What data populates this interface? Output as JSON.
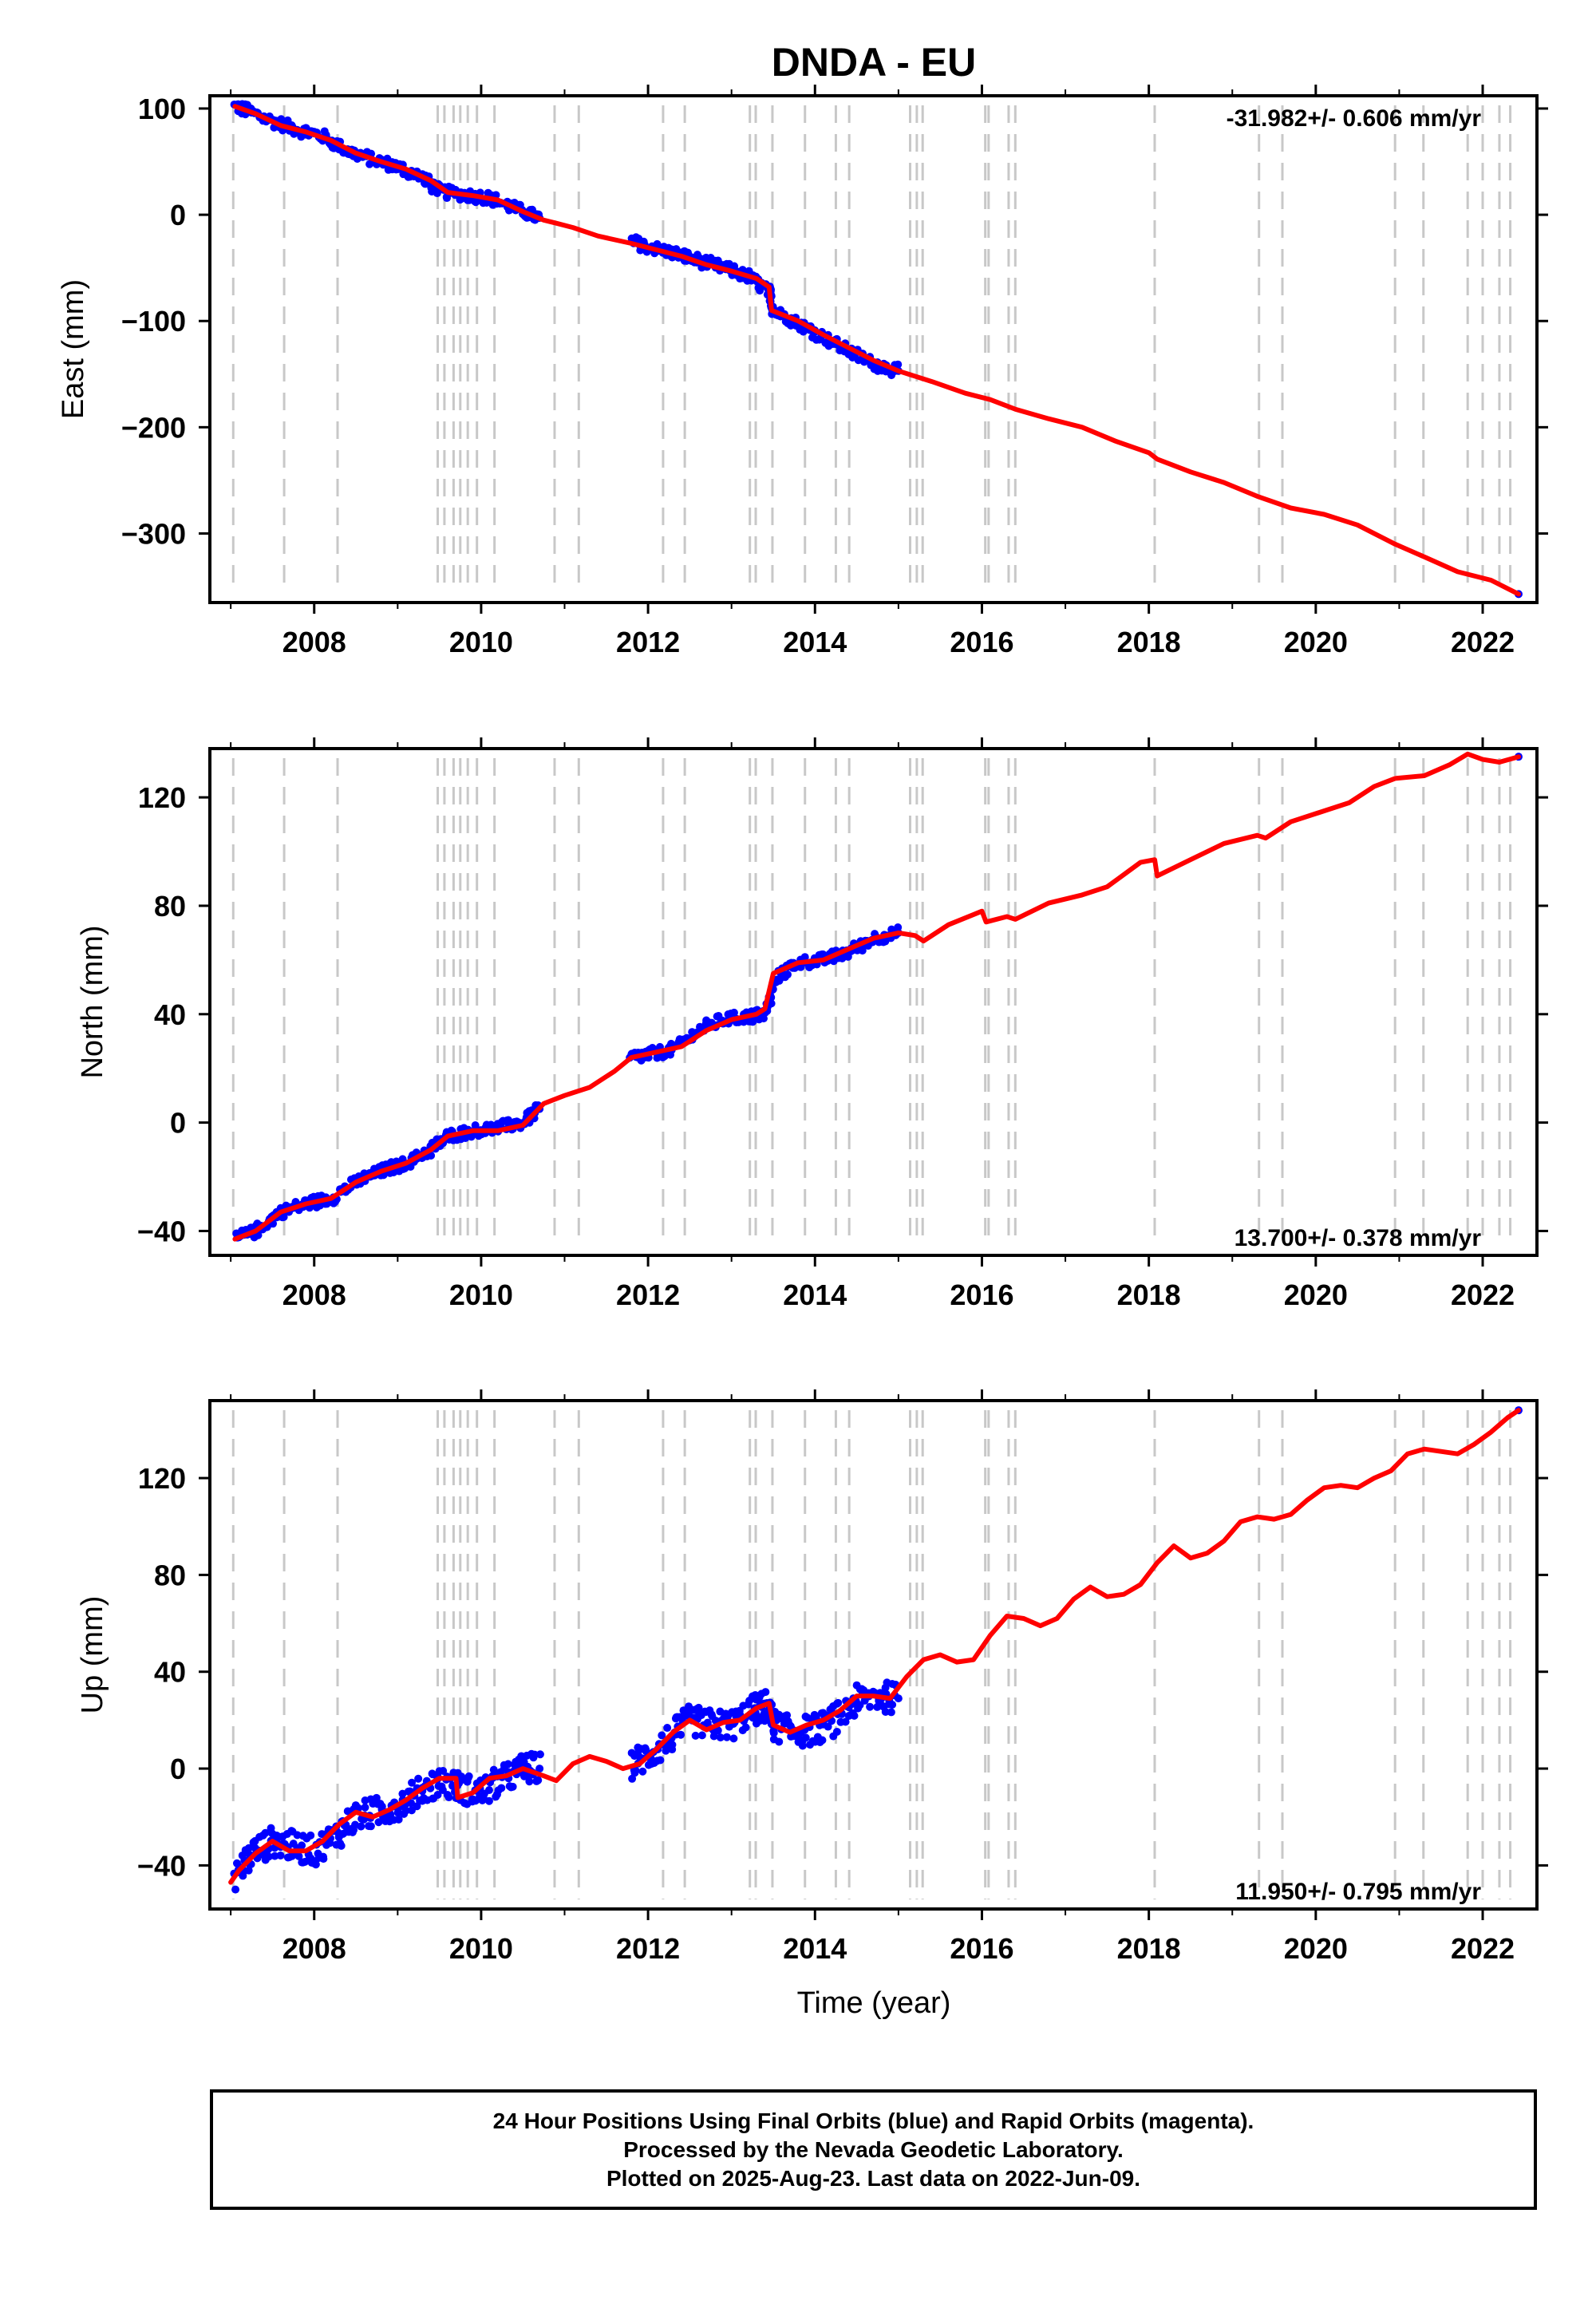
{
  "title": "DNDA - EU",
  "xlabel": "Time (year)",
  "x_ticks": [
    2008,
    2010,
    2012,
    2014,
    2016,
    2018,
    2020,
    2022
  ],
  "xlim": [
    2006.75,
    2022.65
  ],
  "colors": {
    "final": "#0000ff",
    "rapid": "#ff00ff",
    "model": "#ff0000",
    "events": "#c8c8c8"
  },
  "event_lines": [
    2007.03,
    2007.64,
    2008.28,
    2009.48,
    2009.56,
    2009.67,
    2009.75,
    2009.84,
    2009.95,
    2010.16,
    2010.88,
    2011.17,
    2012.18,
    2012.44,
    2013.22,
    2013.29,
    2013.49,
    2013.88,
    2014.25,
    2014.41,
    2015.14,
    2015.22,
    2015.29,
    2016.04,
    2016.08,
    2016.32,
    2016.4,
    2018.07,
    2019.32,
    2019.6,
    2020.95,
    2021.29,
    2021.82,
    2022.0,
    2022.2,
    2022.33
  ],
  "chart_data": [
    {
      "type": "scatter",
      "ylabel": "East (mm)",
      "rate_label": "-31.982+/- 0.606 mm/yr",
      "ylim": [
        -365,
        112
      ],
      "y_ticks": [
        100,
        0,
        -100,
        -200,
        -300
      ],
      "y_tick_labels": [
        "100",
        "0",
        "−100",
        "−200",
        "−300"
      ],
      "series": [
        {
          "name": "Final Orbits",
          "color": "#0000ff",
          "segments": [
            {
              "x": [
                2007.05,
                2007.2,
                2007.5,
                2007.8,
                2008.1,
                2008.4,
                2008.7,
                2009.0,
                2009.3,
                2009.5,
                2009.8,
                2010.1,
                2010.4,
                2010.7
              ],
              "y": [
                102,
                98,
                88,
                80,
                74,
                60,
                52,
                45,
                35,
                22,
                19,
                16,
                6,
                -3
              ]
            },
            {
              "x": [
                2011.8,
                2012.0,
                2012.3,
                2012.6,
                2012.9,
                2013.2,
                2013.45,
                2013.5,
                2013.8,
                2014.1,
                2014.4,
                2014.7,
                2015.0
              ],
              "y": [
                -25,
                -30,
                -36,
                -43,
                -50,
                -58,
                -72,
                -90,
                -102,
                -115,
                -128,
                -140,
                -147
              ]
            },
            {
              "x": [
                2022.43
              ],
              "y": [
                -357
              ]
            }
          ]
        },
        {
          "name": "Model",
          "color": "#ff0000",
          "x": [
            2007.05,
            2007.3,
            2007.6,
            2007.9,
            2008.2,
            2008.5,
            2008.8,
            2009.1,
            2009.4,
            2009.6,
            2009.9,
            2010.2,
            2010.5,
            2010.75,
            2010.9,
            2011.1,
            2011.4,
            2011.8,
            2012.1,
            2012.4,
            2012.7,
            2013.0,
            2013.3,
            2013.45,
            2013.48,
            2013.8,
            2014.1,
            2014.4,
            2014.7,
            2015.0,
            2015.4,
            2015.8,
            2016.1,
            2016.4,
            2016.8,
            2017.2,
            2017.6,
            2018.0,
            2018.1,
            2018.5,
            2018.9,
            2019.3,
            2019.7,
            2020.1,
            2020.5,
            2020.95,
            2021.3,
            2021.7,
            2022.1,
            2022.43
          ],
          "y": [
            102,
            95,
            84,
            78,
            70,
            58,
            50,
            43,
            32,
            21,
            18,
            14,
            3,
            -5,
            -8,
            -12,
            -20,
            -27,
            -33,
            -39,
            -47,
            -53,
            -60,
            -68,
            -90,
            -100,
            -113,
            -125,
            -137,
            -147,
            -157,
            -168,
            -174,
            -183,
            -192,
            -200,
            -213,
            -224,
            -230,
            -242,
            -252,
            -265,
            -276,
            -282,
            -292,
            -310,
            -322,
            -336,
            -344,
            -357
          ]
        }
      ]
    },
    {
      "type": "scatter",
      "ylabel": "North (mm)",
      "rate_label": "13.700+/- 0.378 mm/yr",
      "ylim": [
        -49,
        138
      ],
      "y_ticks": [
        120,
        80,
        40,
        0,
        -40
      ],
      "y_tick_labels": [
        "120",
        "80",
        "40",
        "0",
        "−40"
      ],
      "series": [
        {
          "name": "Final Orbits",
          "color": "#0000ff",
          "segments": [
            {
              "x": [
                2007.05,
                2007.3,
                2007.6,
                2007.9,
                2008.2,
                2008.5,
                2008.8,
                2009.1,
                2009.4,
                2009.6,
                2009.9,
                2010.2,
                2010.5,
                2010.7
              ],
              "y": [
                -43,
                -40,
                -33,
                -30,
                -28,
                -22,
                -18,
                -15,
                -10,
                -5,
                -3,
                -2,
                0,
                5
              ]
            },
            {
              "x": [
                2011.8,
                2012.0,
                2012.3,
                2012.6,
                2012.9,
                2013.2,
                2013.4,
                2013.55,
                2013.8,
                2014.1,
                2014.4,
                2014.7,
                2015.0
              ],
              "y": [
                24,
                25,
                27,
                34,
                38,
                39,
                40,
                54,
                59,
                60,
                63,
                68,
                70
              ]
            },
            {
              "x": [
                2022.43
              ],
              "y": [
                135
              ]
            }
          ]
        },
        {
          "name": "Model",
          "color": "#ff0000",
          "x": [
            2007.05,
            2007.3,
            2007.6,
            2007.9,
            2008.2,
            2008.5,
            2008.8,
            2009.1,
            2009.4,
            2009.6,
            2009.9,
            2010.2,
            2010.5,
            2010.75,
            2011.0,
            2011.3,
            2011.6,
            2011.8,
            2012.1,
            2012.4,
            2012.7,
            2013.0,
            2013.3,
            2013.4,
            2013.5,
            2013.8,
            2014.1,
            2014.4,
            2014.7,
            2015.0,
            2015.2,
            2015.3,
            2015.6,
            2016.0,
            2016.05,
            2016.3,
            2016.4,
            2016.8,
            2017.2,
            2017.5,
            2017.9,
            2018.07,
            2018.1,
            2018.5,
            2018.9,
            2019.3,
            2019.4,
            2019.7,
            2020.0,
            2020.4,
            2020.7,
            2020.95,
            2021.3,
            2021.6,
            2021.82,
            2022.0,
            2022.2,
            2022.43
          ],
          "y": [
            -43,
            -40,
            -33,
            -30,
            -28,
            -22,
            -18,
            -15,
            -10,
            -5,
            -3,
            -3,
            -1,
            7,
            10,
            13,
            19,
            24,
            26,
            28,
            34,
            38,
            40,
            42,
            55,
            59,
            60,
            64,
            68,
            70,
            69,
            67,
            73,
            78,
            74,
            76,
            75,
            81,
            84,
            87,
            96,
            97,
            91,
            97,
            103,
            106,
            105,
            111,
            114,
            118,
            124,
            127,
            128,
            132,
            136,
            134,
            133,
            135
          ]
        }
      ]
    },
    {
      "type": "scatter",
      "ylabel": "Up (mm)",
      "rate_label": "11.950+/- 0.795 mm/yr",
      "ylim": [
        -58,
        152
      ],
      "y_ticks": [
        120,
        80,
        40,
        0,
        -40
      ],
      "y_tick_labels": [
        "120",
        "80",
        "40",
        "0",
        "−40"
      ],
      "series": [
        {
          "name": "Final Orbits",
          "color": "#0000ff",
          "segments": [
            {
              "x": [
                2007.05,
                2007.25,
                2007.5,
                2007.75,
                2008.0,
                2008.25,
                2008.5,
                2008.75,
                2009.0,
                2009.25,
                2009.5,
                2009.75,
                2010.0,
                2010.25,
                2010.5,
                2010.7
              ],
              "y": [
                -45,
                -35,
                -30,
                -32,
                -34,
                -28,
                -20,
                -18,
                -15,
                -10,
                -5,
                -8,
                -10,
                -5,
                0,
                0
              ]
            },
            {
              "x": [
                2011.8,
                2012.0,
                2012.25,
                2012.5,
                2012.75,
                2013.0,
                2013.25,
                2013.4,
                2013.5,
                2013.75,
                2014.0,
                2014.25,
                2014.5,
                2014.75,
                2015.0
              ],
              "y": [
                2,
                5,
                12,
                20,
                18,
                18,
                24,
                26,
                18,
                15,
                16,
                20,
                28,
                30,
                29
              ]
            },
            {
              "x": [
                2022.43
              ],
              "y": [
                148
              ]
            }
          ]
        },
        {
          "name": "Model",
          "color": "#ff0000",
          "x": [
            2007.0,
            2007.1,
            2007.3,
            2007.5,
            2007.7,
            2007.9,
            2008.1,
            2008.3,
            2008.5,
            2008.7,
            2008.9,
            2009.1,
            2009.3,
            2009.5,
            2009.7,
            2009.72,
            2009.9,
            2010.1,
            2010.3,
            2010.5,
            2010.75,
            2010.9,
            2011.1,
            2011.3,
            2011.5,
            2011.7,
            2011.9,
            2012.1,
            2012.3,
            2012.5,
            2012.7,
            2012.9,
            2013.1,
            2013.3,
            2013.45,
            2013.5,
            2013.7,
            2013.9,
            2014.1,
            2014.3,
            2014.5,
            2014.7,
            2014.9,
            2015.1,
            2015.3,
            2015.5,
            2015.7,
            2015.9,
            2016.1,
            2016.3,
            2016.5,
            2016.7,
            2016.9,
            2017.1,
            2017.3,
            2017.5,
            2017.7,
            2017.9,
            2018.1,
            2018.3,
            2018.5,
            2018.7,
            2018.9,
            2019.1,
            2019.3,
            2019.5,
            2019.7,
            2019.9,
            2020.1,
            2020.3,
            2020.5,
            2020.7,
            2020.9,
            2021.1,
            2021.3,
            2021.5,
            2021.7,
            2021.9,
            2022.1,
            2022.3,
            2022.43
          ],
          "y": [
            -47,
            -42,
            -35,
            -30,
            -34,
            -34,
            -30,
            -23,
            -18,
            -20,
            -17,
            -13,
            -8,
            -4,
            -4,
            -12,
            -10,
            -4,
            -3,
            0,
            -3,
            -5,
            2,
            5,
            3,
            0,
            2,
            8,
            15,
            20,
            16,
            19,
            20,
            25,
            27,
            18,
            15,
            18,
            20,
            24,
            30,
            30,
            29,
            38,
            45,
            47,
            44,
            45,
            55,
            63,
            62,
            59,
            62,
            70,
            75,
            71,
            72,
            76,
            85,
            92,
            87,
            89,
            94,
            102,
            104,
            103,
            105,
            111,
            116,
            117,
            116,
            120,
            123,
            130,
            132,
            131,
            130,
            134,
            139,
            145,
            148
          ]
        }
      ]
    }
  ],
  "caption": {
    "line1": "24 Hour Positions Using Final Orbits (blue) and Rapid Orbits (magenta).",
    "line2": "Processed by the Nevada Geodetic Laboratory.",
    "line3": "Plotted on 2025-Aug-23. Last data on 2022-Jun-09."
  }
}
